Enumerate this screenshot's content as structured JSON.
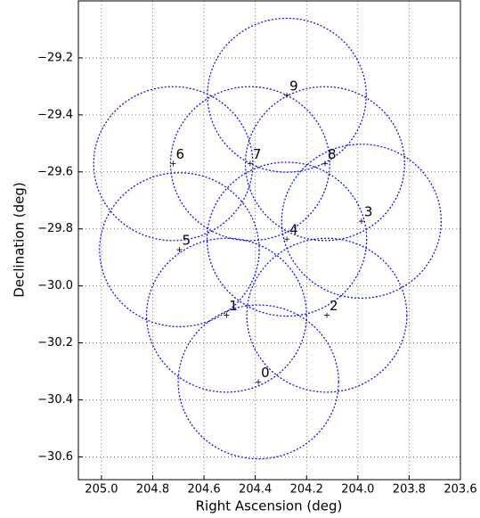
{
  "chart_data": {
    "type": "scatter",
    "xlabel": "Right Ascension (deg)",
    "ylabel": "Declination (deg)",
    "labels": [
      "0",
      "1",
      "2",
      "3",
      "4",
      "5",
      "6",
      "7",
      "8",
      "9"
    ],
    "x": [
      204.388,
      204.512,
      204.121,
      203.986,
      204.277,
      204.696,
      204.72,
      204.42,
      204.128,
      204.277
    ],
    "y": [
      -30.337,
      -30.103,
      -30.103,
      -29.773,
      -29.836,
      -29.873,
      -29.571,
      -29.571,
      -29.571,
      -29.331
    ],
    "radius": 0.27,
    "color": "#0000ff",
    "marker_color": "#000000",
    "xlim": [
      205.09,
      203.6
    ],
    "xticks": [
      {
        "value": 205,
        "label": "205.0"
      },
      204.8,
      204.6,
      204.4,
      204.2,
      {
        "value": 204,
        "label": "204.0"
      },
      203.8,
      203.6
    ],
    "ylim": [
      -29.0,
      -30.68
    ],
    "yticks": [
      {
        "value": -29.2,
        "label": "−29.2"
      },
      {
        "value": -29.4,
        "label": "−29.4"
      },
      {
        "value": -29.6,
        "label": "−29.6"
      },
      {
        "value": -29.8,
        "label": "−29.8"
      },
      {
        "value": -30.0,
        "label": "−30.0"
      },
      {
        "value": -30.2,
        "label": "−30.2"
      },
      {
        "value": -30.4,
        "label": "−30.4"
      },
      {
        "value": -30.6,
        "label": "−30.6"
      }
    ],
    "grid": true
  }
}
